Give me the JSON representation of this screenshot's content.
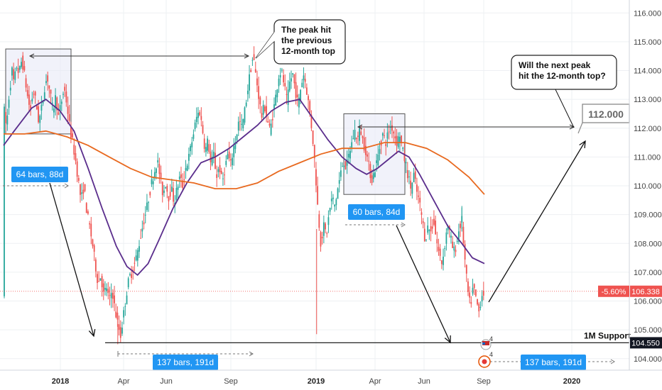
{
  "chart_data": {
    "type": "candlestick",
    "y_axis": {
      "ticks": [
        "116.000",
        "115.000",
        "114.000",
        "113.000",
        "112.000",
        "111.000",
        "110.000",
        "109.000",
        "108.000",
        "107.000",
        "106.000",
        "105.000",
        "104.000"
      ],
      "min": 103.6,
      "max": 116.45
    },
    "x_axis": {
      "ticks": [
        {
          "label": "2018",
          "bold": true
        },
        {
          "label": "Apr",
          "bold": false
        },
        {
          "label": "Jun",
          "bold": false
        },
        {
          "label": "Sep",
          "bold": false
        },
        {
          "label": "2019",
          "bold": true
        },
        {
          "label": "Apr",
          "bold": false
        },
        {
          "label": "Jun",
          "bold": false
        },
        {
          "label": "Sep",
          "bold": false
        },
        {
          "label": "2020",
          "bold": true
        }
      ]
    },
    "price_path": [
      [
        0,
        112.8
      ],
      [
        4,
        112.0
      ],
      [
        8,
        113.2
      ],
      [
        12,
        114.0
      ],
      [
        15,
        113.5
      ],
      [
        18,
        114.2
      ],
      [
        22,
        113.9
      ],
      [
        26,
        114.4
      ],
      [
        30,
        113.8
      ],
      [
        34,
        113.1
      ],
      [
        38,
        112.6
      ],
      [
        42,
        113.3
      ],
      [
        46,
        112.9
      ],
      [
        50,
        112.2
      ],
      [
        54,
        112.7
      ],
      [
        58,
        113.4
      ],
      [
        62,
        113.8
      ],
      [
        66,
        113.2
      ],
      [
        70,
        112.6
      ],
      [
        74,
        113.1
      ],
      [
        78,
        112.4
      ],
      [
        82,
        112.9
      ],
      [
        86,
        113.4
      ],
      [
        90,
        112.8
      ],
      [
        94,
        112.0
      ],
      [
        98,
        111.5
      ],
      [
        102,
        110.9
      ],
      [
        106,
        110.2
      ],
      [
        110,
        109.5
      ],
      [
        114,
        110.0
      ],
      [
        118,
        109.1
      ],
      [
        122,
        108.6
      ],
      [
        126,
        108.0
      ],
      [
        130,
        107.3
      ],
      [
        134,
        106.6
      ],
      [
        138,
        106.9
      ],
      [
        142,
        106.2
      ],
      [
        146,
        106.5
      ],
      [
        150,
        106.0
      ],
      [
        154,
        106.4
      ],
      [
        158,
        105.7
      ],
      [
        162,
        105.2
      ],
      [
        166,
        104.8
      ],
      [
        170,
        105.5
      ],
      [
        174,
        106.2
      ],
      [
        178,
        106.8
      ],
      [
        182,
        107.0
      ],
      [
        186,
        107.3
      ],
      [
        190,
        107.7
      ],
      [
        194,
        108.2
      ],
      [
        198,
        108.7
      ],
      [
        202,
        109.1
      ],
      [
        206,
        109.6
      ],
      [
        210,
        110.1
      ],
      [
        214,
        110.5
      ],
      [
        218,
        110.9
      ],
      [
        222,
        110.3
      ],
      [
        226,
        109.7
      ],
      [
        230,
        110.1
      ],
      [
        234,
        109.6
      ],
      [
        238,
        109.9
      ],
      [
        242,
        109.4
      ],
      [
        246,
        109.9
      ],
      [
        250,
        110.3
      ],
      [
        254,
        110.0
      ],
      [
        258,
        110.6
      ],
      [
        262,
        110.9
      ],
      [
        266,
        111.4
      ],
      [
        270,
        111.9
      ],
      [
        274,
        112.4
      ],
      [
        278,
        112.6
      ],
      [
        282,
        112.0
      ],
      [
        286,
        111.2
      ],
      [
        290,
        111.6
      ],
      [
        294,
        110.7
      ],
      [
        298,
        111.1
      ],
      [
        302,
        110.3
      ],
      [
        306,
        110.7
      ],
      [
        310,
        110.1
      ],
      [
        314,
        110.6
      ],
      [
        318,
        111.1
      ],
      [
        322,
        110.7
      ],
      [
        326,
        111.3
      ],
      [
        330,
        111.7
      ],
      [
        334,
        112.3
      ],
      [
        338,
        112.0
      ],
      [
        342,
        112.6
      ],
      [
        346,
        113.3
      ],
      [
        350,
        114.0
      ],
      [
        354,
        114.5
      ],
      [
        358,
        113.8
      ],
      [
        362,
        113.1
      ],
      [
        366,
        112.4
      ],
      [
        370,
        112.8
      ],
      [
        374,
        112.3
      ],
      [
        378,
        111.9
      ],
      [
        382,
        112.5
      ],
      [
        386,
        113.1
      ],
      [
        390,
        113.8
      ],
      [
        394,
        114.0
      ],
      [
        398,
        113.5
      ],
      [
        402,
        112.9
      ],
      [
        406,
        113.6
      ],
      [
        410,
        113.9
      ],
      [
        414,
        113.3
      ],
      [
        418,
        112.8
      ],
      [
        422,
        113.5
      ],
      [
        426,
        113.9
      ],
      [
        430,
        113.3
      ],
      [
        434,
        112.6
      ],
      [
        438,
        111.8
      ],
      [
        442,
        110.6
      ],
      [
        446,
        109.1
      ],
      [
        450,
        108.0
      ],
      [
        454,
        108.6
      ],
      [
        458,
        108.3
      ],
      [
        462,
        109.1
      ],
      [
        466,
        109.6
      ],
      [
        470,
        109.3
      ],
      [
        474,
        109.9
      ],
      [
        478,
        110.4
      ],
      [
        482,
        110.9
      ],
      [
        486,
        110.6
      ],
      [
        490,
        111.1
      ],
      [
        494,
        111.5
      ],
      [
        498,
        111.9
      ],
      [
        502,
        111.6
      ],
      [
        506,
        112.0
      ],
      [
        510,
        111.5
      ],
      [
        514,
        111.2
      ],
      [
        518,
        110.7
      ],
      [
        522,
        110.2
      ],
      [
        526,
        110.5
      ],
      [
        530,
        110.9
      ],
      [
        534,
        111.4
      ],
      [
        538,
        111.8
      ],
      [
        542,
        111.5
      ],
      [
        546,
        111.9
      ],
      [
        550,
        112.1
      ],
      [
        554,
        111.8
      ],
      [
        558,
        111.5
      ],
      [
        562,
        111.8
      ],
      [
        566,
        111.2
      ],
      [
        570,
        110.8
      ],
      [
        574,
        110.3
      ],
      [
        578,
        109.9
      ],
      [
        582,
        110.4
      ],
      [
        586,
        109.8
      ],
      [
        590,
        109.4
      ],
      [
        594,
        108.8
      ],
      [
        598,
        108.1
      ],
      [
        602,
        108.6
      ],
      [
        606,
        108.4
      ],
      [
        610,
        108.8
      ],
      [
        614,
        108.1
      ],
      [
        618,
        107.6
      ],
      [
        622,
        107.3
      ],
      [
        626,
        108.0
      ],
      [
        630,
        108.7
      ],
      [
        634,
        108.2
      ],
      [
        638,
        107.7
      ],
      [
        642,
        107.9
      ],
      [
        646,
        108.5
      ],
      [
        650,
        108.8
      ],
      [
        654,
        107.5
      ],
      [
        658,
        106.4
      ],
      [
        662,
        105.8
      ],
      [
        666,
        106.5
      ],
      [
        670,
        106.1
      ],
      [
        674,
        105.6
      ],
      [
        678,
        106.2
      ],
      [
        682,
        106.34
      ]
    ],
    "moving_averages": [
      {
        "color": "#5a2d8c",
        "points": [
          [
            0,
            111.4
          ],
          [
            15,
            111.9
          ],
          [
            40,
            112.7
          ],
          [
            60,
            113.0
          ],
          [
            80,
            112.6
          ],
          [
            100,
            111.9
          ],
          [
            120,
            110.6
          ],
          [
            140,
            109.2
          ],
          [
            160,
            107.9
          ],
          [
            175,
            107.2
          ],
          [
            190,
            106.9
          ],
          [
            205,
            107.3
          ],
          [
            220,
            108.1
          ],
          [
            240,
            109.2
          ],
          [
            260,
            110.1
          ],
          [
            280,
            110.8
          ],
          [
            300,
            111.0
          ],
          [
            320,
            111.3
          ],
          [
            340,
            111.7
          ],
          [
            360,
            112.1
          ],
          [
            380,
            112.6
          ],
          [
            400,
            112.9
          ],
          [
            420,
            113.0
          ],
          [
            440,
            112.3
          ],
          [
            460,
            111.6
          ],
          [
            480,
            111.0
          ],
          [
            500,
            110.6
          ],
          [
            515,
            110.4
          ],
          [
            530,
            110.6
          ],
          [
            545,
            110.9
          ],
          [
            560,
            111.2
          ],
          [
            575,
            111.0
          ],
          [
            590,
            110.4
          ],
          [
            610,
            109.5
          ],
          [
            630,
            108.6
          ],
          [
            650,
            108.0
          ],
          [
            665,
            107.5
          ],
          [
            682,
            107.3
          ]
        ]
      },
      {
        "color": "#e8691f",
        "points": [
          [
            0,
            111.8
          ],
          [
            30,
            111.8
          ],
          [
            60,
            111.9
          ],
          [
            90,
            111.7
          ],
          [
            120,
            111.4
          ],
          [
            150,
            111.0
          ],
          [
            180,
            110.6
          ],
          [
            210,
            110.3
          ],
          [
            240,
            110.2
          ],
          [
            270,
            110.1
          ],
          [
            300,
            109.9
          ],
          [
            330,
            109.9
          ],
          [
            360,
            110.1
          ],
          [
            390,
            110.5
          ],
          [
            420,
            110.8
          ],
          [
            450,
            111.1
          ],
          [
            480,
            111.3
          ],
          [
            510,
            111.3
          ],
          [
            540,
            111.5
          ],
          [
            570,
            111.5
          ],
          [
            600,
            111.3
          ],
          [
            630,
            110.9
          ],
          [
            660,
            110.3
          ],
          [
            682,
            109.7
          ]
        ]
      }
    ],
    "current_price": {
      "value": 106.338,
      "label": "106.338",
      "change_label": "-5.60%"
    },
    "support": {
      "value": 104.55,
      "label": "104.550",
      "name": "1M Support"
    },
    "target": {
      "label": "112.000"
    },
    "annotations": [
      {
        "lines": [
          "The peak hit",
          "the previous",
          "12-month top"
        ]
      },
      {
        "lines": [
          "Will the next peak",
          "hit the 12-month top?"
        ]
      }
    ],
    "range_labels": [
      "64 bars, 88d",
      "60 bars, 84d",
      "137 bars, 191d",
      "137 bars, 191d"
    ],
    "event_tags": [
      "4",
      "4"
    ],
    "colors": {
      "up": "#26a69a",
      "down": "#ef5350",
      "range": "#2196f3",
      "price_tag": "#ef5350",
      "axis_tag": "#131722"
    }
  }
}
